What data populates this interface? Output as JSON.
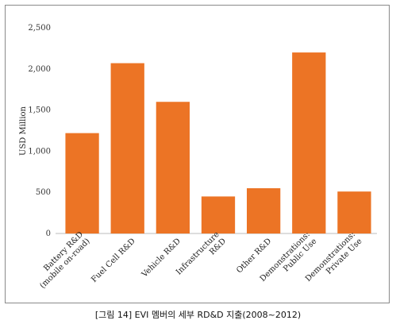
{
  "caption": "[그림 14] EVI 멤버의 세부 RD&D 지출(2008~2012)",
  "chart_data": {
    "type": "bar",
    "title": "",
    "xlabel": "",
    "ylabel": "USD Million",
    "ylim": [
      0,
      2500
    ],
    "yticks": [
      0,
      500,
      1000,
      1500,
      2000,
      2500
    ],
    "ytick_labels": [
      "0",
      "500",
      "1,000",
      "1,500",
      "2,000",
      "2,500"
    ],
    "categories": [
      [
        "Battery R&D",
        "(mobile on-road)"
      ],
      [
        "Fuel Cell R&D"
      ],
      [
        "Vehicle R&D"
      ],
      [
        "Infrastructure",
        "R&D"
      ],
      [
        "Other R&D"
      ],
      [
        "Demonstrations:",
        "Public Use"
      ],
      [
        "Demonstrations:",
        "Private Use"
      ]
    ],
    "values": [
      1220,
      2070,
      1600,
      450,
      550,
      2200,
      510
    ],
    "bar_color": "#ec7425",
    "grid": false,
    "legend": "none"
  }
}
